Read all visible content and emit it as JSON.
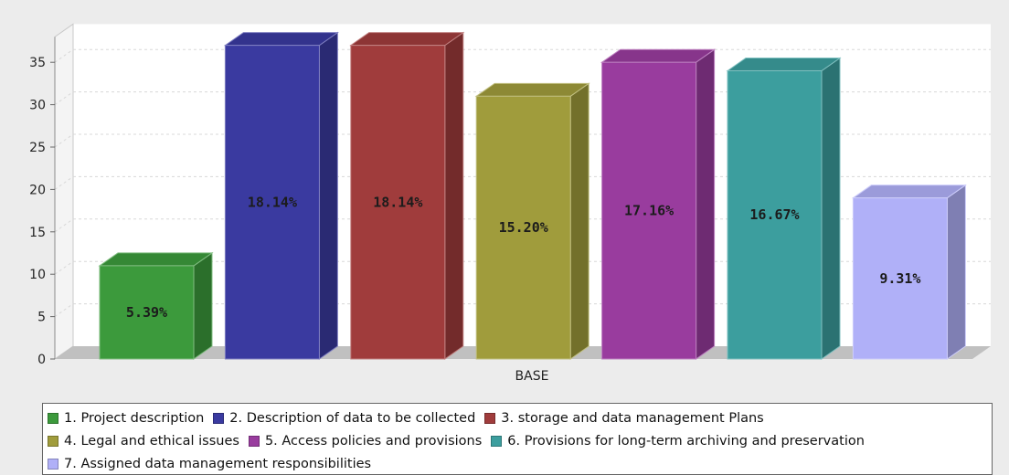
{
  "chart_data": {
    "type": "bar",
    "categories": [
      "BASE"
    ],
    "ylim": [
      0,
      38
    ],
    "yticks": [
      0,
      5,
      10,
      15,
      20,
      25,
      30,
      35
    ],
    "grid": true,
    "legend_position": "bottom",
    "series": [
      {
        "name": "1. Project description",
        "value": 11,
        "label": "5.39%",
        "color": "#3c9a3c"
      },
      {
        "name": "2. Description of data to be collected",
        "value": 37,
        "label": "18.14%",
        "color": "#3a3aa0"
      },
      {
        "name": "3. storage and data management Plans",
        "value": 37,
        "label": "18.14%",
        "color": "#a03c3c"
      },
      {
        "name": "4. Legal and ethical issues",
        "value": 31,
        "label": "15.20%",
        "color": "#a09c3c"
      },
      {
        "name": "5. Access policies and provisions",
        "value": 35,
        "label": "17.16%",
        "color": "#993c9e"
      },
      {
        "name": "6. Provisions for long-term archiving and preservation",
        "value": 34,
        "label": "16.67%",
        "color": "#3c9e9e"
      },
      {
        "name": "7. Assigned data management responsibilities",
        "value": 19,
        "label": "9.31%",
        "color": "#b0b0f8"
      }
    ]
  }
}
